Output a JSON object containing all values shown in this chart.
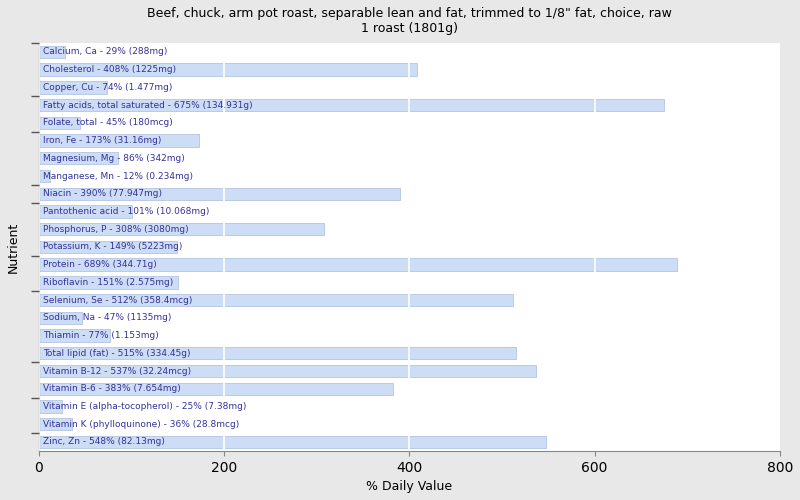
{
  "title": "Beef, chuck, arm pot roast, separable lean and fat, trimmed to 1/8\" fat, choice, raw\n1 roast (1801g)",
  "xlabel": "% Daily Value",
  "ylabel": "Nutrient",
  "xlim": [
    0,
    800
  ],
  "xticks": [
    0,
    200,
    400,
    600,
    800
  ],
  "fig_bg_color": "#e8e8e8",
  "plot_bg_color": "#ffffff",
  "bar_color": "#ccddf5",
  "bar_edge_color": "#aabbdd",
  "text_color": "#333399",
  "nutrients": [
    {
      "label": "Calcium, Ca - 29% (288mg)",
      "value": 29
    },
    {
      "label": "Cholesterol - 408% (1225mg)",
      "value": 408
    },
    {
      "label": "Copper, Cu - 74% (1.477mg)",
      "value": 74
    },
    {
      "label": "Fatty acids, total saturated - 675% (134.931g)",
      "value": 675
    },
    {
      "label": "Folate, total - 45% (180mcg)",
      "value": 45
    },
    {
      "label": "Iron, Fe - 173% (31.16mg)",
      "value": 173
    },
    {
      "label": "Magnesium, Mg - 86% (342mg)",
      "value": 86
    },
    {
      "label": "Manganese, Mn - 12% (0.234mg)",
      "value": 12
    },
    {
      "label": "Niacin - 390% (77.947mg)",
      "value": 390
    },
    {
      "label": "Pantothenic acid - 101% (10.068mg)",
      "value": 101
    },
    {
      "label": "Phosphorus, P - 308% (3080mg)",
      "value": 308
    },
    {
      "label": "Potassium, K - 149% (5223mg)",
      "value": 149
    },
    {
      "label": "Protein - 689% (344.71g)",
      "value": 689
    },
    {
      "label": "Riboflavin - 151% (2.575mg)",
      "value": 151
    },
    {
      "label": "Selenium, Se - 512% (358.4mcg)",
      "value": 512
    },
    {
      "label": "Sodium, Na - 47% (1135mg)",
      "value": 47
    },
    {
      "label": "Thiamin - 77% (1.153mg)",
      "value": 77
    },
    {
      "label": "Total lipid (fat) - 515% (334.45g)",
      "value": 515
    },
    {
      "label": "Vitamin B-12 - 537% (32.24mcg)",
      "value": 537
    },
    {
      "label": "Vitamin B-6 - 383% (7.654mg)",
      "value": 383
    },
    {
      "label": "Vitamin E (alpha-tocopherol) - 25% (7.38mg)",
      "value": 25
    },
    {
      "label": "Vitamin K (phylloquinone) - 36% (28.8mcg)",
      "value": 36
    },
    {
      "label": "Zinc, Zn - 548% (82.13mg)",
      "value": 548
    }
  ],
  "figsize": [
    8.0,
    5.0
  ],
  "dpi": 100,
  "bar_height": 0.7,
  "label_fontsize": 6.5,
  "title_fontsize": 9,
  "axis_label_fontsize": 9
}
